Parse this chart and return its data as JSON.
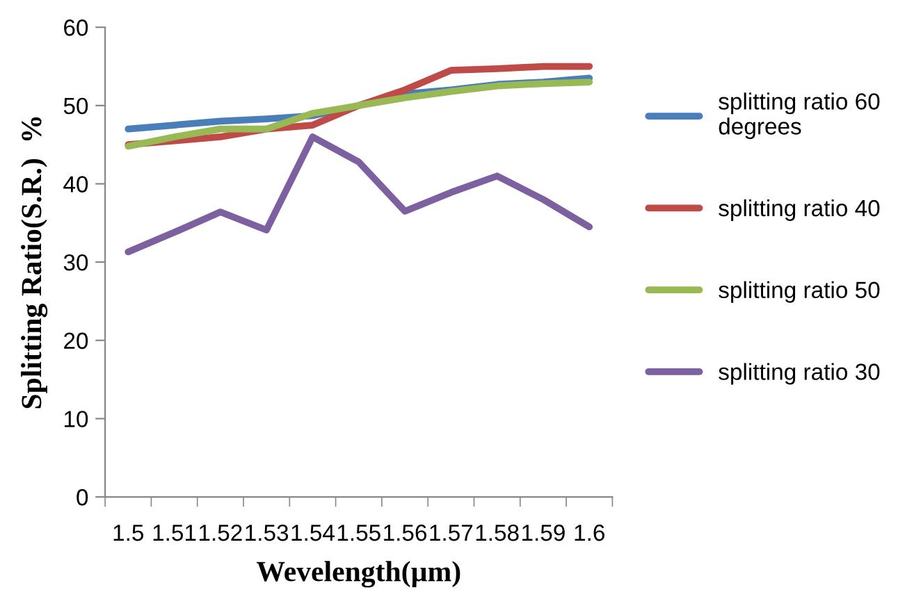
{
  "chart_data": {
    "type": "line",
    "xlabel": "Wevelength(µm)",
    "ylabel": "Splitting Ratio(S.R.)  %",
    "categories": [
      "1.5",
      "1.51",
      "1.52",
      "1.53",
      "1.54",
      "1.55",
      "1.56",
      "1.57",
      "1.58",
      "1.59",
      "1.6"
    ],
    "series": [
      {
        "name": "splitting ratio 60\ndegrees",
        "color": "#4a7ebb",
        "values": [
          47,
          47.5,
          48,
          48.3,
          48.7,
          50,
          51.5,
          52,
          52.7,
          53,
          53.5
        ]
      },
      {
        "name": "splitting ratio 40",
        "color": "#be4b48",
        "values": [
          45,
          45.5,
          46,
          47,
          47.5,
          50,
          52,
          54.5,
          54.7,
          55,
          55
        ]
      },
      {
        "name": "splitting ratio 50",
        "color": "#98b954",
        "values": [
          44.8,
          46,
          47,
          47,
          49,
          50,
          51,
          51.8,
          52.5,
          52.8,
          53
        ]
      },
      {
        "name": "splitting ratio 30",
        "color": "#7d60a0",
        "values": [
          31.3,
          33.8,
          36.4,
          34.1,
          46,
          42.8,
          36.5,
          38.9,
          41,
          38,
          34.5
        ]
      }
    ],
    "ylim": [
      0,
      60
    ],
    "yticks": [
      0,
      10,
      20,
      30,
      40,
      50,
      60
    ],
    "grid": false,
    "legend": "right",
    "marker": "none",
    "line_style": "solid"
  }
}
